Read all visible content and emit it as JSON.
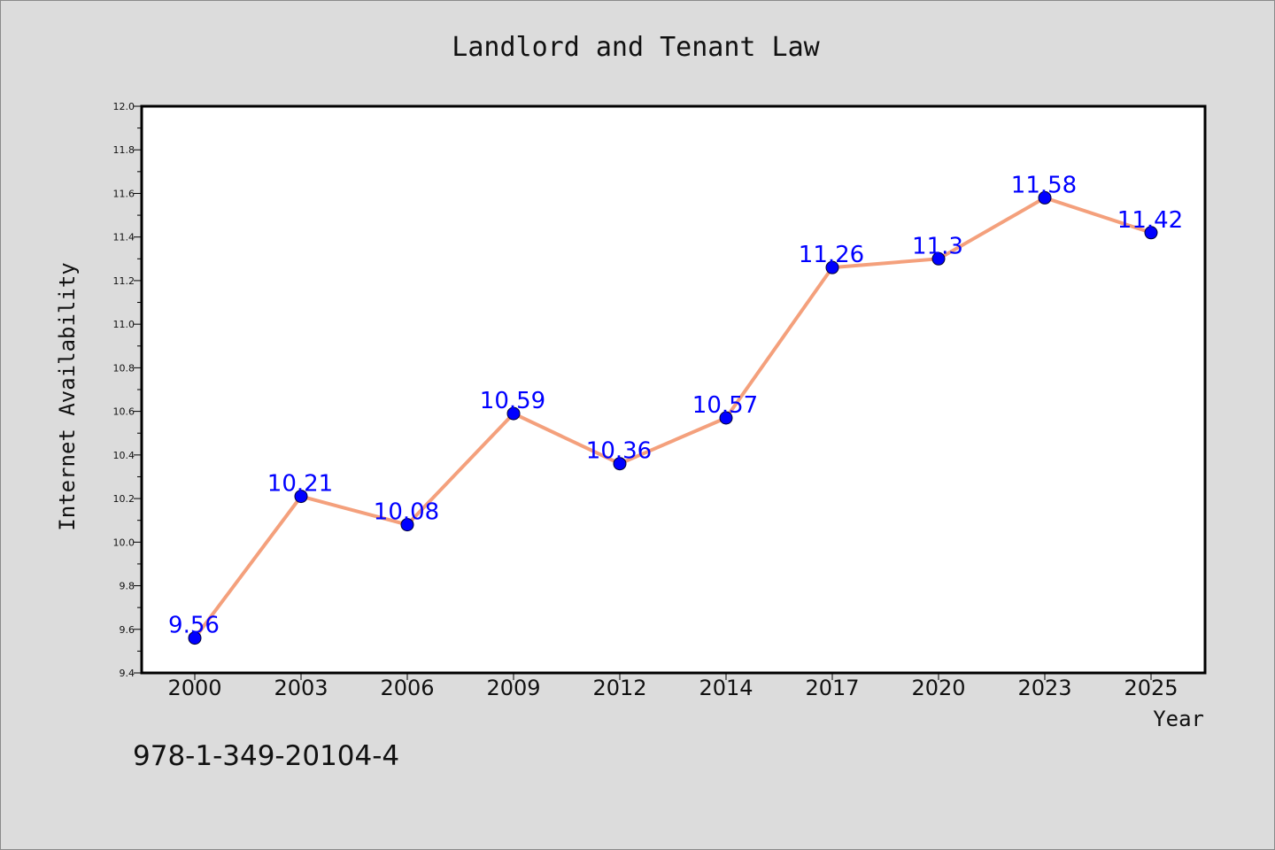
{
  "chart_data": {
    "type": "line",
    "title": "Landlord and Tenant Law",
    "xlabel": "Year",
    "ylabel": "Internet Availability",
    "categories": [
      "2000",
      "2003",
      "2006",
      "2009",
      "2012",
      "2014",
      "2017",
      "2020",
      "2023",
      "2025"
    ],
    "series": [
      {
        "values": [
          9.56,
          10.21,
          10.08,
          10.59,
          10.36,
          10.57,
          11.26,
          11.3,
          11.58,
          11.42
        ],
        "data_labels": [
          "9.56",
          "10.21",
          "10.08",
          "10.59",
          "10.36",
          "10.57",
          "11.26",
          "11.3",
          "11.58",
          "11.42"
        ],
        "line_color": "#f4a07c",
        "marker_color": "#0000ff"
      }
    ],
    "ylim": [
      9.4,
      12.0
    ],
    "yticks": [
      "9.4",
      "9.6",
      "9.8",
      "10.0",
      "10.2",
      "10.4",
      "10.6",
      "10.8",
      "11.0",
      "11.2",
      "11.4",
      "11.6",
      "11.8",
      "12.0"
    ],
    "grid": false,
    "legend": "none"
  },
  "footer": {
    "isbn": "978-1-349-20104-4"
  }
}
